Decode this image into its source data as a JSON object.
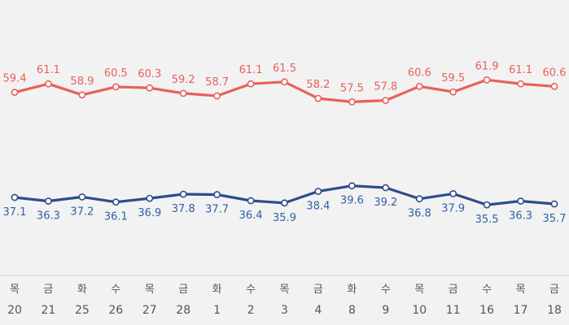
{
  "chart_data": {
    "type": "line",
    "categories": [
      {
        "day": "목",
        "date": "20"
      },
      {
        "day": "금",
        "date": "21"
      },
      {
        "day": "화",
        "date": "25"
      },
      {
        "day": "수",
        "date": "26"
      },
      {
        "day": "목",
        "date": "27"
      },
      {
        "day": "금",
        "date": "28"
      },
      {
        "day": "화",
        "date": "1"
      },
      {
        "day": "수",
        "date": "2"
      },
      {
        "day": "목",
        "date": "3"
      },
      {
        "day": "금",
        "date": "4"
      },
      {
        "day": "화",
        "date": "8"
      },
      {
        "day": "수",
        "date": "9"
      },
      {
        "day": "목",
        "date": "10"
      },
      {
        "day": "금",
        "date": "11"
      },
      {
        "day": "수",
        "date": "16"
      },
      {
        "day": "목",
        "date": "17"
      },
      {
        "day": "금",
        "date": "18"
      }
    ],
    "series": [
      {
        "color": "#e8605b",
        "label_color": "#e8605b",
        "label_position": "above",
        "values": [
          59.4,
          61.1,
          58.9,
          60.5,
          60.3,
          59.2,
          58.7,
          61.1,
          61.5,
          58.2,
          57.5,
          57.8,
          60.6,
          59.5,
          61.9,
          61.1,
          60.6
        ],
        "labels": [
          "59.4",
          "61.1",
          "58.9",
          "60.5",
          "60.3",
          "59.2",
          "58.7",
          "61.1",
          "61.5",
          "58.2",
          "57.5",
          "57.8",
          "60.6",
          "59.5",
          "61.9",
          "61.1",
          "60.6"
        ]
      },
      {
        "color": "#2e4d8a",
        "label_color": "#2f5fa8",
        "label_position": "below",
        "values": [
          37.1,
          36.3,
          37.2,
          36.1,
          36.9,
          37.8,
          37.7,
          36.4,
          35.9,
          38.4,
          39.6,
          39.2,
          36.8,
          37.9,
          35.5,
          36.3,
          35.7
        ],
        "labels": [
          "37.1",
          "36.3",
          "37.2",
          "36.1",
          "36.9",
          "37.8",
          "37.7",
          "36.4",
          "35.9",
          "38.4",
          "39.6",
          "39.2",
          "36.8",
          "37.9",
          "35.5",
          "36.3",
          "35.7"
        ]
      }
    ],
    "grid": false,
    "legend": "none"
  }
}
